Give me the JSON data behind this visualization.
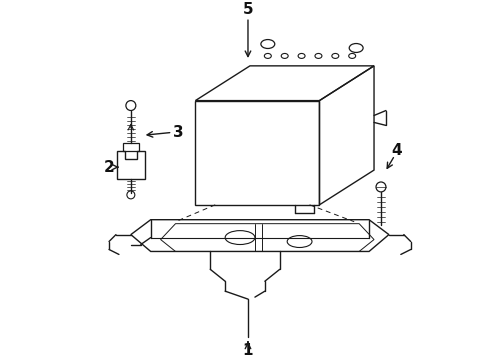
{
  "background_color": "#ffffff",
  "line_color": "#1a1a1a",
  "label_color": "#111111",
  "figsize": [
    4.9,
    3.6
  ],
  "dpi": 100
}
